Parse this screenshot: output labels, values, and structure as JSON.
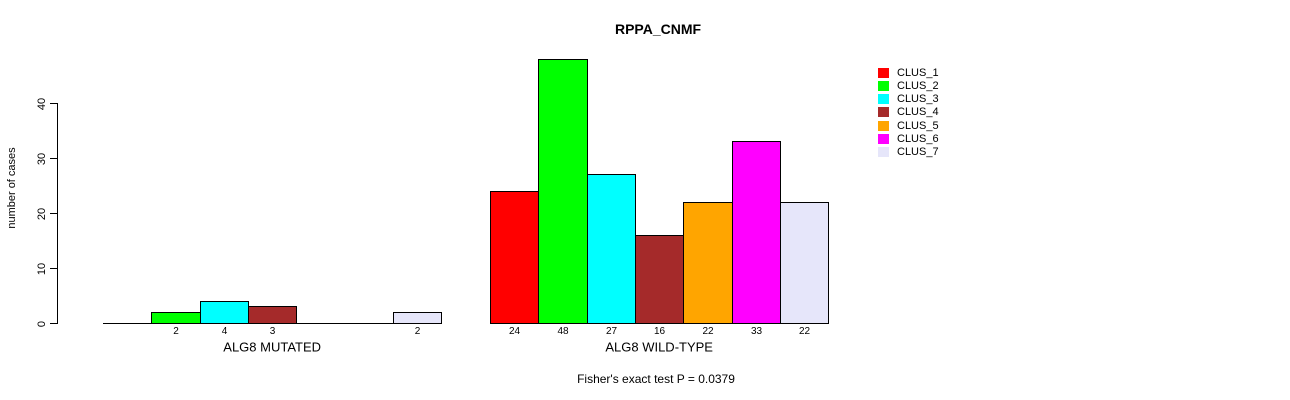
{
  "chart_data": {
    "type": "bar",
    "title": "RPPA_CNMF",
    "ylabel": "number of cases",
    "footer": "Fisher's exact test P = 0.0379",
    "yticks": [
      0,
      10,
      20,
      30,
      40
    ],
    "ylim": [
      0,
      48
    ],
    "grid": false,
    "legend_position": "right",
    "bar_outline_color": "#000000",
    "legend": [
      {
        "label": "CLUS_1",
        "color": "#FF0000"
      },
      {
        "label": "CLUS_2",
        "color": "#00FF00"
      },
      {
        "label": "CLUS_3",
        "color": "#00FFFF"
      },
      {
        "label": "CLUS_4",
        "color": "#A52A2A"
      },
      {
        "label": "CLUS_5",
        "color": "#FFA500"
      },
      {
        "label": "CLUS_6",
        "color": "#FF00FF"
      },
      {
        "label": "CLUS_7",
        "color": "#E6E6FA"
      }
    ],
    "groups": [
      {
        "label": "ALG8 MUTATED",
        "values": [
          0,
          2,
          4,
          3,
          0,
          0,
          2
        ]
      },
      {
        "label": "ALG8 WILD-TYPE",
        "values": [
          24,
          48,
          27,
          16,
          22,
          33,
          22
        ]
      }
    ]
  }
}
